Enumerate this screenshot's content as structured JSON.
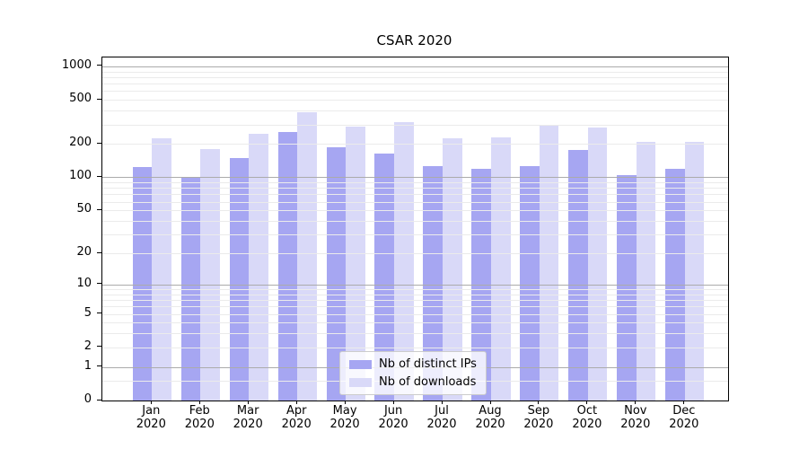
{
  "chart_data": {
    "type": "bar",
    "title": "CSAR 2020",
    "y_scale": "log1p",
    "ylim": [
      0,
      1200
    ],
    "yticks": [
      0,
      1,
      2,
      5,
      10,
      20,
      50,
      100,
      200,
      500,
      1000
    ],
    "major_gridlines": [
      1,
      10,
      100,
      1000
    ],
    "minor_gridlines": [
      0.5,
      2,
      3,
      4,
      5,
      6,
      7,
      8,
      9,
      20,
      30,
      40,
      50,
      60,
      70,
      80,
      90,
      200,
      300,
      400,
      500,
      600,
      700,
      800,
      900
    ],
    "categories": [
      "Jan 2020",
      "Feb 2020",
      "Mar 2020",
      "Apr 2020",
      "May 2020",
      "Jun 2020",
      "Jul 2020",
      "Aug 2020",
      "Sep 2020",
      "Oct 2020",
      "Nov 2020",
      "Dec 2020"
    ],
    "month_labels": [
      "Jan",
      "Feb",
      "Mar",
      "Apr",
      "May",
      "Jun",
      "Jul",
      "Aug",
      "Sep",
      "Oct",
      "Nov",
      "Dec"
    ],
    "year_label": "2020",
    "series": [
      {
        "name": "Nb of distinct IPs",
        "color": "#a6a6f2",
        "values": [
          125,
          100,
          148,
          256,
          186,
          163,
          127,
          120,
          127,
          177,
          105,
          120
        ]
      },
      {
        "name": "Nb of downloads",
        "color": "#d9d9f8",
        "values": [
          227,
          180,
          246,
          385,
          288,
          316,
          227,
          230,
          296,
          283,
          208,
          208
        ]
      }
    ],
    "legend_position": "lower center",
    "grid": true
  },
  "colors": {
    "background": "#ffffff",
    "axis": "#000000",
    "grid_major": "#ababab",
    "grid_minor": "#ebebeb",
    "legend_border": "#cccccc"
  }
}
